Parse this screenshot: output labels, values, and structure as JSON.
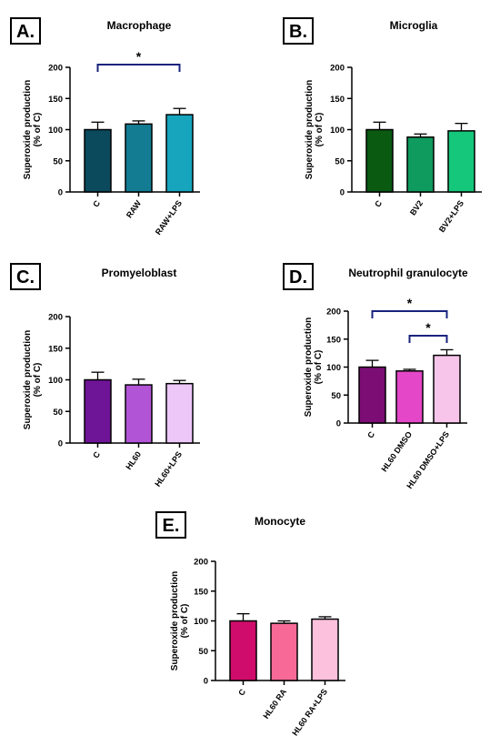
{
  "chart_data": [
    {
      "type": "bar",
      "panel": "A.",
      "title": "Macrophage",
      "ylabel": [
        "Superoxide production",
        "(% of C)"
      ],
      "ylim": [
        0,
        200
      ],
      "yticks": [
        0,
        50,
        100,
        150,
        200
      ],
      "categories": [
        "C",
        "RAW",
        "RAW+LPS"
      ],
      "values": [
        100,
        109,
        124
      ],
      "errors": [
        12,
        5,
        10
      ],
      "colors": [
        "#0a4a5c",
        "#137c93",
        "#16a5bd"
      ],
      "significance": [
        {
          "from": 0,
          "to": 2,
          "label": "*"
        }
      ]
    },
    {
      "type": "bar",
      "panel": "B.",
      "title": "Microglia",
      "ylabel": [
        "Superoxide production",
        "(% of C)"
      ],
      "ylim": [
        0,
        200
      ],
      "yticks": [
        0,
        50,
        100,
        150,
        200
      ],
      "categories": [
        "C",
        "BV2",
        "BV2+LPS"
      ],
      "values": [
        100,
        88,
        98
      ],
      "errors": [
        12,
        5,
        12
      ],
      "colors": [
        "#0a5a12",
        "#0f9a5e",
        "#14c77b"
      ],
      "significance": []
    },
    {
      "type": "bar",
      "panel": "C.",
      "title": "Promyeloblast",
      "ylabel": [
        "Superoxide production",
        "(% of C)"
      ],
      "ylim": [
        0,
        200
      ],
      "yticks": [
        0,
        50,
        100,
        150,
        200
      ],
      "categories": [
        "C",
        "HL60",
        "HL60+LPS"
      ],
      "values": [
        100,
        92,
        94
      ],
      "errors": [
        12,
        9,
        5
      ],
      "colors": [
        "#6e1496",
        "#b254d6",
        "#ecc7f7"
      ],
      "significance": []
    },
    {
      "type": "bar",
      "panel": "D.",
      "title": "Neutrophil granulocyte",
      "ylabel": [
        "Superoxide production",
        "(% of C)"
      ],
      "ylim": [
        0,
        200
      ],
      "yticks": [
        0,
        50,
        100,
        150,
        200
      ],
      "categories": [
        "C",
        "HL60 DMSO",
        "HL60 DMSO+LPS"
      ],
      "values": [
        100,
        93,
        121
      ],
      "errors": [
        12,
        3,
        10
      ],
      "colors": [
        "#7b0d74",
        "#e447c7",
        "#f7c4ea"
      ],
      "significance": [
        {
          "from": 0,
          "to": 2,
          "label": "*"
        },
        {
          "from": 1,
          "to": 2,
          "label": "*"
        }
      ]
    },
    {
      "type": "bar",
      "panel": "E.",
      "title": "Monocyte",
      "ylabel": [
        "Superoxide production",
        "(% of C)"
      ],
      "ylim": [
        0,
        200
      ],
      "yticks": [
        0,
        50,
        100,
        150,
        200
      ],
      "categories": [
        "C",
        "HL60 RA",
        "HL60 RA+LPS"
      ],
      "values": [
        100,
        96,
        103
      ],
      "errors": [
        12,
        4,
        4
      ],
      "colors": [
        "#cf0c6b",
        "#f76a98",
        "#fcc1dc"
      ],
      "significance": []
    }
  ],
  "colors": {
    "significance_bracket": "#1a237e",
    "axis": "#000000"
  }
}
